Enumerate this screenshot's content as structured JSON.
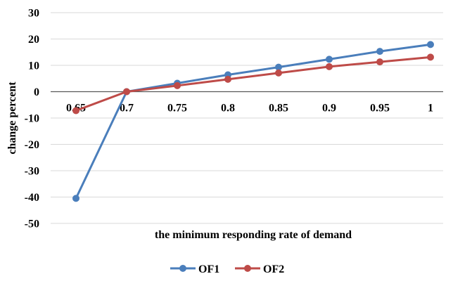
{
  "chart_data": {
    "type": "line",
    "title": "",
    "xlabel": "the minimum responding rate of demand",
    "ylabel": "change percent",
    "categories": [
      "0.65",
      "0.7",
      "0.75",
      "0.8",
      "0.85",
      "0.9",
      "0.95",
      "1"
    ],
    "y_ticks": [
      "30",
      "20",
      "10",
      "0",
      "-10",
      "-20",
      "-30",
      "-40",
      "-50"
    ],
    "ylim": [
      -50,
      30
    ],
    "grid": true,
    "legend_position": "bottom",
    "series": [
      {
        "name": "OF1",
        "color": "#4a7ebb",
        "values": [
          -40.5,
          0,
          3.2,
          6.4,
          9.3,
          12.3,
          15.3,
          17.9
        ]
      },
      {
        "name": "OF2",
        "color": "#be4b48",
        "values": [
          -7.2,
          0,
          2.3,
          4.7,
          7.1,
          9.5,
          11.3,
          13.1
        ]
      }
    ]
  }
}
